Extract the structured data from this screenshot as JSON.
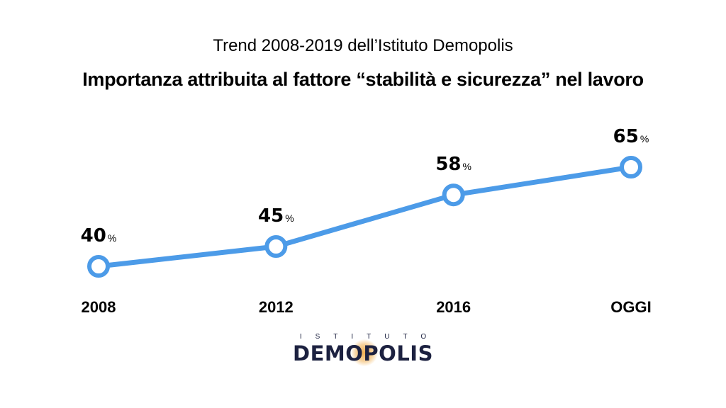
{
  "header": {
    "subtitle": "Trend 2008-2019 dell’Istituto Demopolis",
    "title": "Importanza attribuita al fattore “stabilità e sicurezza” nel lavoro"
  },
  "chart_data": {
    "type": "line",
    "title": "Importanza attribuita al fattore “stabilità e sicurezza” nel lavoro",
    "subtitle": "Trend 2008-2019 dell’Istituto Demopolis",
    "categories": [
      "2008",
      "2012",
      "2016",
      "OGGI"
    ],
    "series": [
      {
        "values": [
          40,
          45,
          58,
          65
        ],
        "unit": "%",
        "color": "#4c9be8"
      }
    ],
    "data_labels": [
      "40",
      "45",
      "58",
      "65"
    ],
    "xlabel": "",
    "ylabel": "",
    "ylim": [
      30,
      70
    ],
    "grid": false,
    "marker": "hollow-circle"
  },
  "logo": {
    "top_text": "ISTITUTO",
    "main_text": "DEMOPOLIS",
    "text_color": "#1c2140",
    "accent_color": "#f0aa46"
  }
}
